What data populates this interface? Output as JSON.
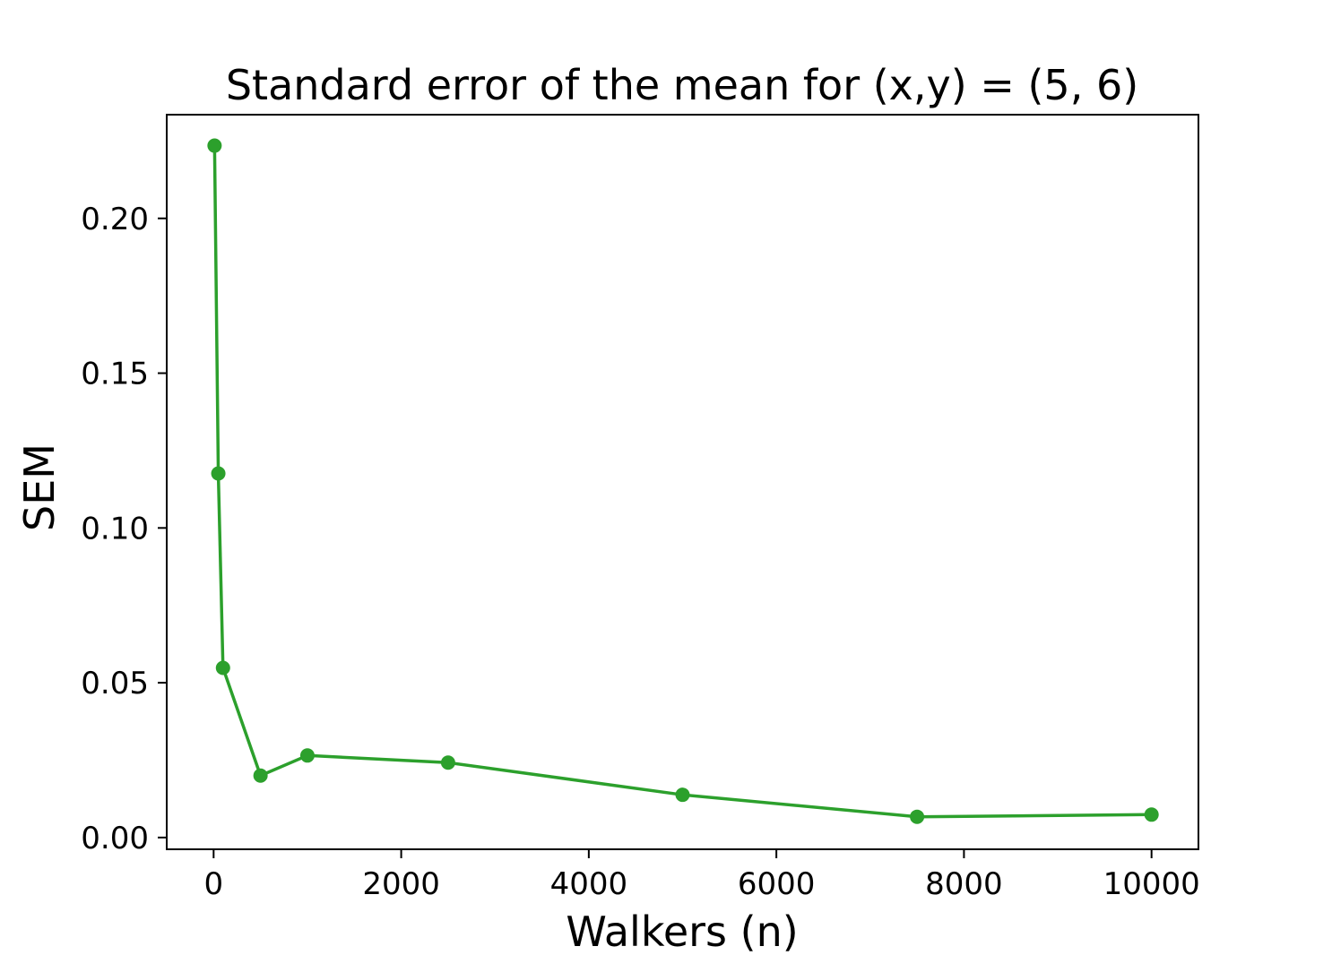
{
  "chart_data": {
    "type": "line",
    "title": "Standard error of the mean for (x,y) = (5, 6)",
    "xlabel": "Walkers (n)",
    "ylabel": "SEM",
    "xlim": [
      -500,
      10500
    ],
    "ylim": [
      -0.0038,
      0.2335
    ],
    "xticks": [
      0,
      2000,
      4000,
      6000,
      8000,
      10000
    ],
    "xtick_labels": [
      "0",
      "2000",
      "4000",
      "6000",
      "8000",
      "10000"
    ],
    "yticks": [
      0.0,
      0.05,
      0.1,
      0.15,
      0.2
    ],
    "ytick_labels": [
      "0.00",
      "0.05",
      "0.10",
      "0.15",
      "0.20"
    ],
    "grid": false,
    "series": [
      {
        "color": "#2ca02c",
        "marker": "circle",
        "x": [
          10,
          50,
          100,
          500,
          1000,
          2500,
          5000,
          7500,
          10000
        ],
        "y": [
          0.2235,
          0.1176,
          0.0548,
          0.02,
          0.0265,
          0.0242,
          0.0138,
          0.0067,
          0.0074
        ]
      }
    ]
  }
}
